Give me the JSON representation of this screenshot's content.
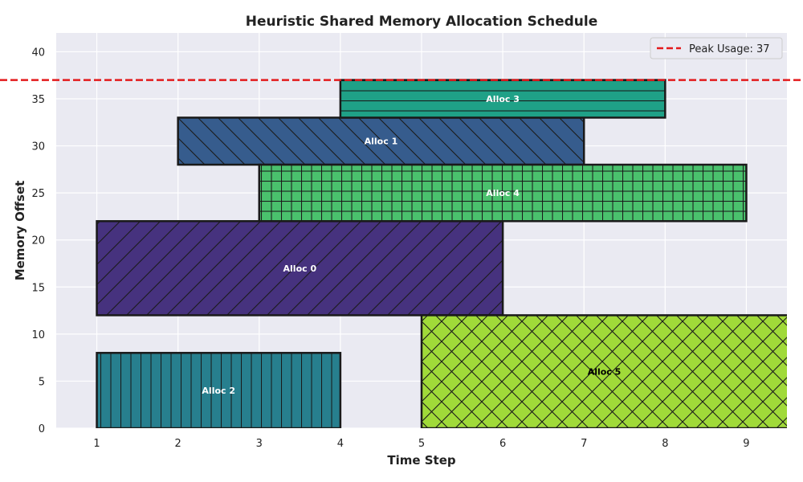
{
  "chart_data": {
    "type": "bar",
    "title": "Heuristic Shared Memory Allocation Schedule",
    "xlabel": "Time Step",
    "ylabel": "Memory Offset",
    "xlim": [
      0.5,
      9.5
    ],
    "ylim": [
      0,
      42
    ],
    "xticks": [
      1,
      2,
      3,
      4,
      5,
      6,
      7,
      8,
      9
    ],
    "yticks": [
      0,
      5,
      10,
      15,
      20,
      25,
      30,
      35,
      40
    ],
    "grid": true,
    "legend_position": "top-right",
    "series": [
      {
        "label": "Alloc 0",
        "start": 1,
        "end": 6,
        "offset": 12,
        "size": 10,
        "color": "#46327e",
        "hatch": "forward-diagonal",
        "label_color": "#ffffff"
      },
      {
        "label": "Alloc 1",
        "start": 2,
        "end": 7,
        "offset": 28,
        "size": 5,
        "color": "#365c8d",
        "hatch": "back-diagonal",
        "label_color": "#ffffff"
      },
      {
        "label": "Alloc 2",
        "start": 1,
        "end": 4,
        "offset": 0,
        "size": 8,
        "color": "#277f8e",
        "hatch": "vertical",
        "label_color": "#ffffff"
      },
      {
        "label": "Alloc 3",
        "start": 4,
        "end": 8,
        "offset": 33,
        "size": 4,
        "color": "#1fa187",
        "hatch": "horizontal",
        "label_color": "#ffffff"
      },
      {
        "label": "Alloc 4",
        "start": 3,
        "end": 9,
        "offset": 22,
        "size": 6,
        "color": "#4ac16d",
        "hatch": "grid",
        "label_color": "#ffffff"
      },
      {
        "label": "Alloc 5",
        "start": 5,
        "end": 10,
        "offset": 0,
        "size": 12,
        "color": "#a0da39",
        "hatch": "crosshatch",
        "label_color": "#000000"
      }
    ],
    "peak_line": {
      "value": 37,
      "label": "Peak Usage: 37",
      "color": "#e31a1c"
    }
  }
}
